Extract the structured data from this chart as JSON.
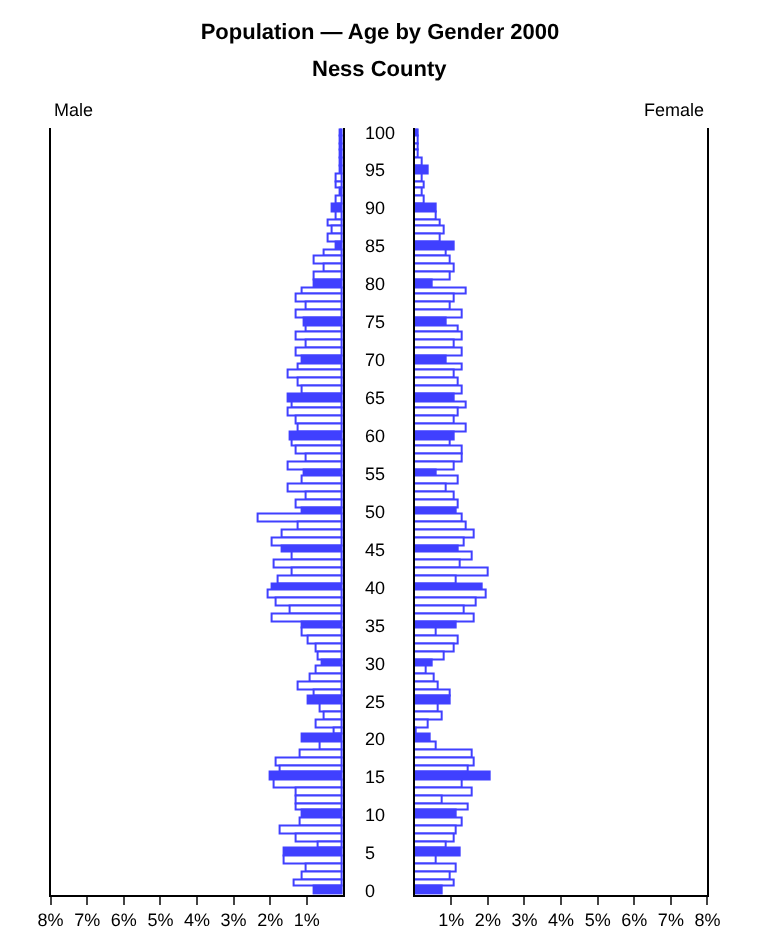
{
  "chart_data": [
    {
      "type": "bar",
      "orientation": "horizontal",
      "title": "Population — Age by Gender 2000",
      "subtitle": "Ness County",
      "annotations": [
        "Male"
      ],
      "categories": [
        "100",
        null,
        null,
        null,
        null,
        "95",
        null,
        null,
        null,
        null,
        "90",
        null,
        null,
        null,
        null,
        "85",
        null,
        null,
        null,
        null,
        "80",
        null,
        null,
        null,
        null,
        "75",
        null,
        null,
        null,
        null,
        "70",
        null,
        null,
        null,
        null,
        "65",
        null,
        null,
        null,
        null,
        "60",
        null,
        null,
        null,
        null,
        "55",
        null,
        null,
        null,
        null,
        "50",
        null,
        null,
        null,
        null,
        "45",
        null,
        null,
        null,
        null,
        "40",
        null,
        null,
        null,
        null,
        "35",
        null,
        null,
        null,
        null,
        "30",
        null,
        null,
        null,
        null,
        "25",
        null,
        null,
        null,
        null,
        "20",
        null,
        null,
        null,
        null,
        "15",
        null,
        null,
        null,
        null,
        "10",
        null,
        null,
        null,
        null,
        "5",
        null,
        null,
        null,
        null,
        "0"
      ],
      "values": [
        0.1,
        0.05,
        0.05,
        0.1,
        0.1,
        0.1,
        0.2,
        0.2,
        0.1,
        0.2,
        0.3,
        0.2,
        0.4,
        0.3,
        0.4,
        0.2,
        0.5,
        0.8,
        0.5,
        0.8,
        0.8,
        1.1,
        1.3,
        1.0,
        1.3,
        1.05,
        1.0,
        1.3,
        1.0,
        1.3,
        1.1,
        1.2,
        1.5,
        1.2,
        1.1,
        1.5,
        1.4,
        1.5,
        1.3,
        1.2,
        1.47,
        1.4,
        1.3,
        1.0,
        1.5,
        1.05,
        1.1,
        1.5,
        1.0,
        1.3,
        1.14,
        2.3,
        1.25,
        1.67,
        1.93,
        1.67,
        1.37,
        1.88,
        1.37,
        1.77,
        1.95,
        2.04,
        1.82,
        1.46,
        1.93,
        1.14,
        1.14,
        0.93,
        0.72,
        0.67,
        0.58,
        0.72,
        0.88,
        1.25,
        0.79,
        0.93,
        0.61,
        0.49,
        0.72,
        0.25,
        1.09,
        0.61,
        1.19,
        1.81,
        1.72,
        2.0,
        1.88,
        1.3,
        1.26,
        1.3,
        1.11,
        1.19,
        1.72,
        1.3,
        0.67,
        1.58,
        1.58,
        0.98,
        1.09,
        1.35,
        0.79
      ],
      "color": "#4040ff",
      "colors": [
        "#4040ff",
        "#ffffff",
        "#ffffff",
        "#ffffff",
        "#ffffff",
        "#4040ff",
        "#ffffff",
        "#ffffff",
        "#ffffff",
        "#ffffff",
        "#4040ff",
        "#ffffff",
        "#ffffff",
        "#ffffff",
        "#ffffff",
        "#4040ff",
        "#ffffff",
        "#ffffff",
        "#ffffff",
        "#ffffff",
        "#4040ff",
        "#ffffff",
        "#ffffff",
        "#ffffff",
        "#ffffff",
        "#4040ff",
        "#ffffff",
        "#ffffff",
        "#ffffff",
        "#ffffff",
        "#4040ff",
        "#ffffff",
        "#ffffff",
        "#ffffff",
        "#ffffff",
        "#4040ff",
        "#ffffff",
        "#ffffff",
        "#ffffff",
        "#ffffff",
        "#4040ff",
        "#ffffff",
        "#ffffff",
        "#ffffff",
        "#ffffff",
        "#4040ff",
        "#ffffff",
        "#ffffff",
        "#ffffff",
        "#ffffff",
        "#4040ff",
        "#ffffff",
        "#ffffff",
        "#ffffff",
        "#ffffff",
        "#4040ff",
        "#ffffff",
        "#ffffff",
        "#ffffff",
        "#ffffff",
        "#4040ff",
        "#ffffff",
        "#ffffff",
        "#ffffff",
        "#ffffff",
        "#4040ff",
        "#ffffff",
        "#ffffff",
        "#ffffff",
        "#ffffff",
        "#4040ff",
        "#ffffff",
        "#ffffff",
        "#ffffff",
        "#ffffff",
        "#4040ff",
        "#ffffff",
        "#ffffff",
        "#ffffff",
        "#ffffff",
        "#4040ff",
        "#ffffff",
        "#ffffff",
        "#ffffff",
        "#ffffff",
        "#4040ff",
        "#ffffff",
        "#ffffff",
        "#ffffff",
        "#ffffff",
        "#4040ff",
        "#ffffff",
        "#ffffff",
        "#ffffff",
        "#ffffff",
        "#4040ff",
        "#ffffff",
        "#ffffff",
        "#ffffff",
        "#ffffff",
        "#4040ff"
      ],
      "xlim": [
        8,
        0
      ],
      "xticks": [
        {
          "value": 8,
          "label": "8%"
        },
        {
          "value": 7,
          "label": "7%"
        },
        {
          "value": 6,
          "label": "6%"
        },
        {
          "value": 5,
          "label": "5%"
        },
        {
          "value": 4,
          "label": "4%"
        },
        {
          "value": 3,
          "label": "3%"
        },
        {
          "value": 2,
          "label": "2%"
        },
        {
          "value": 1,
          "label": "1%"
        }
      ]
    },
    {
      "type": "bar",
      "orientation": "horizontal",
      "annotations": [
        "Female"
      ],
      "tick_labels": "x",
      "categories": [
        "100",
        null,
        null,
        null,
        null,
        "95",
        null,
        null,
        null,
        null,
        "90",
        null,
        null,
        null,
        null,
        "85",
        null,
        null,
        null,
        null,
        "80",
        null,
        null,
        null,
        null,
        "75",
        null,
        null,
        null,
        null,
        "70",
        null,
        null,
        null,
        null,
        "65",
        null,
        null,
        null,
        null,
        "60",
        null,
        null,
        null,
        null,
        "55",
        null,
        null,
        null,
        null,
        "50",
        null,
        null,
        null,
        null,
        "45",
        null,
        null,
        null,
        null,
        "40",
        null,
        null,
        null,
        null,
        "35",
        null,
        null,
        null,
        null,
        "30",
        null,
        null,
        null,
        null,
        "25",
        null,
        null,
        null,
        null,
        "20",
        null,
        null,
        null,
        null,
        "15",
        null,
        null,
        null,
        null,
        "10",
        null,
        null,
        null,
        null,
        "5",
        null,
        null,
        null,
        null,
        "0"
      ],
      "values": [
        0.1,
        0.1,
        0.1,
        0.1,
        0.2,
        0.4,
        0.2,
        0.3,
        0.2,
        0.3,
        0.6,
        0.6,
        0.7,
        0.8,
        0.7,
        1.1,
        0.9,
        1.0,
        1.1,
        1.0,
        0.5,
        1.4,
        1.1,
        1.0,
        1.3,
        0.9,
        1.2,
        1.3,
        1.1,
        1.3,
        0.85,
        1.3,
        1.1,
        1.2,
        1.3,
        1.1,
        1.4,
        1.2,
        1.1,
        1.4,
        1.1,
        1.0,
        1.3,
        1.3,
        1.1,
        0.6,
        1.2,
        0.9,
        1.1,
        1.2,
        1.12,
        1.32,
        1.42,
        1.63,
        1.37,
        1.18,
        1.58,
        1.23,
        2.0,
        1.16,
        1.86,
        1.95,
        1.72,
        1.37,
        1.63,
        1.12,
        0.58,
        1.21,
        1.1,
        0.84,
        0.49,
        0.35,
        0.53,
        0.63,
        1.0,
        1.0,
        0.68,
        0.74,
        0.37,
        0.07,
        0.44,
        0.58,
        1.58,
        1.63,
        1.47,
        2.07,
        1.32,
        1.58,
        0.75,
        1.49,
        1.12,
        1.3,
        1.16,
        1.1,
        0.89,
        1.23,
        0.58,
        1.16,
        1.0,
        1.1,
        0.75
      ],
      "color": "#4040ff",
      "colors": [
        "#4040ff",
        "#ffffff",
        "#ffffff",
        "#ffffff",
        "#ffffff",
        "#4040ff",
        "#ffffff",
        "#ffffff",
        "#ffffff",
        "#ffffff",
        "#4040ff",
        "#ffffff",
        "#ffffff",
        "#ffffff",
        "#ffffff",
        "#4040ff",
        "#ffffff",
        "#ffffff",
        "#ffffff",
        "#ffffff",
        "#4040ff",
        "#ffffff",
        "#ffffff",
        "#ffffff",
        "#ffffff",
        "#4040ff",
        "#ffffff",
        "#ffffff",
        "#ffffff",
        "#ffffff",
        "#4040ff",
        "#ffffff",
        "#ffffff",
        "#ffffff",
        "#ffffff",
        "#4040ff",
        "#ffffff",
        "#ffffff",
        "#ffffff",
        "#ffffff",
        "#4040ff",
        "#ffffff",
        "#ffffff",
        "#ffffff",
        "#ffffff",
        "#4040ff",
        "#ffffff",
        "#ffffff",
        "#ffffff",
        "#ffffff",
        "#4040ff",
        "#ffffff",
        "#ffffff",
        "#ffffff",
        "#ffffff",
        "#4040ff",
        "#ffffff",
        "#ffffff",
        "#ffffff",
        "#ffffff",
        "#4040ff",
        "#ffffff",
        "#ffffff",
        "#ffffff",
        "#ffffff",
        "#4040ff",
        "#ffffff",
        "#ffffff",
        "#ffffff",
        "#ffffff",
        "#4040ff",
        "#ffffff",
        "#ffffff",
        "#ffffff",
        "#ffffff",
        "#4040ff",
        "#ffffff",
        "#ffffff",
        "#ffffff",
        "#ffffff",
        "#4040ff",
        "#ffffff",
        "#ffffff",
        "#ffffff",
        "#ffffff",
        "#4040ff",
        "#ffffff",
        "#ffffff",
        "#ffffff",
        "#ffffff",
        "#4040ff",
        "#ffffff",
        "#ffffff",
        "#ffffff",
        "#ffffff",
        "#4040ff",
        "#ffffff",
        "#ffffff",
        "#ffffff",
        "#ffffff",
        "#4040ff"
      ],
      "xlim": [
        0,
        8
      ],
      "xticks": [
        {
          "value": 1,
          "label": "1%"
        },
        {
          "value": 2,
          "label": "2%"
        },
        {
          "value": 3,
          "label": "3%"
        },
        {
          "value": 4,
          "label": "4%"
        },
        {
          "value": 5,
          "label": "5%"
        },
        {
          "value": 6,
          "label": "6%"
        },
        {
          "value": 7,
          "label": "7%"
        },
        {
          "value": 8,
          "label": "8%"
        }
      ]
    }
  ]
}
